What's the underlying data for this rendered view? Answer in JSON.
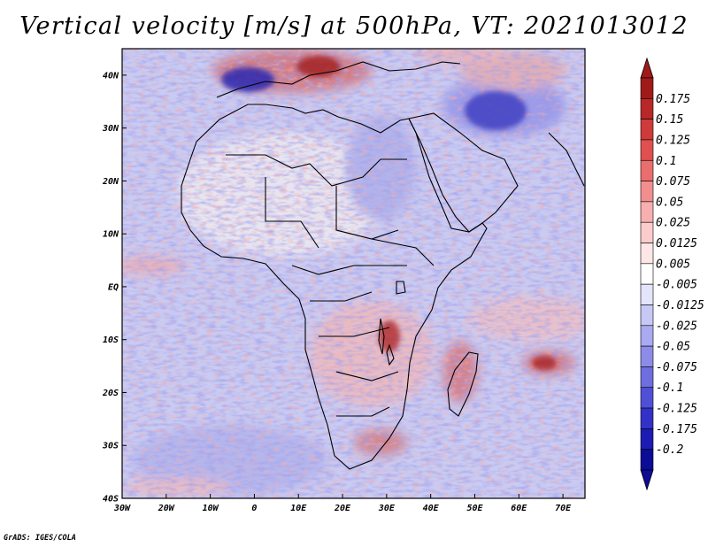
{
  "title": "Vertical velocity [m/s] at 500hPa, VT: 2021013012",
  "footer": "GrADS: IGES/COLA",
  "map": {
    "projection": "latlon",
    "lon_range": [
      -30,
      75
    ],
    "lat_range": [
      -40,
      45
    ],
    "x_ticks": [
      {
        "value": -30,
        "label": "30W"
      },
      {
        "value": -20,
        "label": "20W"
      },
      {
        "value": -10,
        "label": "10W"
      },
      {
        "value": 0,
        "label": "0"
      },
      {
        "value": 10,
        "label": "10E"
      },
      {
        "value": 20,
        "label": "20E"
      },
      {
        "value": 30,
        "label": "30E"
      },
      {
        "value": 40,
        "label": "40E"
      },
      {
        "value": 50,
        "label": "50E"
      },
      {
        "value": 60,
        "label": "60E"
      },
      {
        "value": 70,
        "label": "70E"
      }
    ],
    "y_ticks": [
      {
        "value": 40,
        "label": "40N"
      },
      {
        "value": 30,
        "label": "30N"
      },
      {
        "value": 20,
        "label": "20N"
      },
      {
        "value": 10,
        "label": "10N"
      },
      {
        "value": 0,
        "label": "EQ"
      },
      {
        "value": -10,
        "label": "10S"
      },
      {
        "value": -20,
        "label": "20S"
      },
      {
        "value": -30,
        "label": "30S"
      },
      {
        "value": -40,
        "label": "40S"
      }
    ]
  },
  "colorbar": {
    "labels": [
      "0.175",
      "0.15",
      "0.125",
      "0.1",
      "0.075",
      "0.05",
      "0.025",
      "0.0125",
      "0.005",
      "-0.005",
      "-0.0125",
      "-0.025",
      "-0.05",
      "-0.075",
      "-0.1",
      "-0.125",
      "-0.175",
      "-0.2"
    ],
    "colors": [
      "#a01a1a",
      "#b82828",
      "#cf3a3a",
      "#e05050",
      "#ea6e6e",
      "#f38e8e",
      "#f8afaf",
      "#fbcccc",
      "#fde6e6",
      "#ffffff",
      "#e4e4fb",
      "#c8c8f6",
      "#aaaaf0",
      "#8c8ce8",
      "#6e6ee0",
      "#5050d6",
      "#3232c8",
      "#1c1cb4",
      "#0c0c96"
    ],
    "upper_arrow": "#a01a1a",
    "lower_arrow": "#0c0c96"
  }
}
